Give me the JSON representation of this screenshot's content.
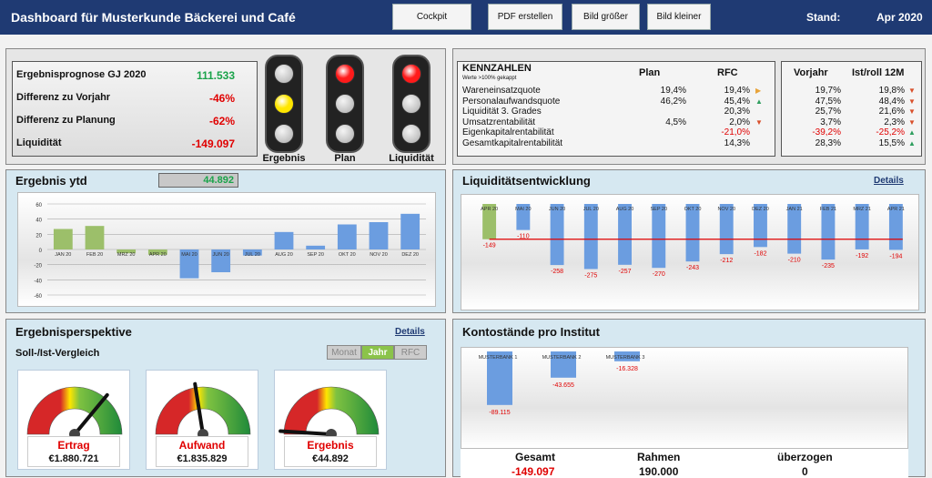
{
  "header": {
    "title": "Dashboard für Musterkunde Bäckerei und Café",
    "buttons": [
      "Cockpit",
      "PDF erstellen",
      "Bild größer",
      "Bild kleiner"
    ],
    "stand_label": "Stand:",
    "stand_value": "Apr 2020"
  },
  "overview": {
    "rows": [
      {
        "label": "Ergebnisprognose GJ 2020",
        "value": "111.533",
        "color": "#1aa34a"
      },
      {
        "label": "Differenz zu Vorjahr",
        "value": "-46%",
        "color": "#e00000"
      },
      {
        "label": "Differenz zu Planung",
        "value": "-62%",
        "color": "#e00000"
      },
      {
        "label": "Liquidität",
        "value": "-149.097",
        "color": "#e00000"
      }
    ],
    "lights": [
      {
        "label": "Ergebnis",
        "active": "yellow"
      },
      {
        "label": "Plan",
        "active": "red"
      },
      {
        "label": "Liquidität",
        "active": "red"
      }
    ]
  },
  "kennzahlen": {
    "title": "KENNZAHLEN",
    "subtitle": "Werte >100% gekappt",
    "col_plan": "Plan",
    "col_rfc": "RFC",
    "col_vorjahr": "Vorjahr",
    "col_ist": "Ist/roll 12M",
    "rows": [
      {
        "label": "Wareneinsatzquote",
        "plan": "19,4%",
        "rfc": "19,4%",
        "rfc_red": false,
        "rfc_arrow": "right",
        "vj": "19,7%",
        "vj_red": false,
        "ist": "19,8%",
        "ist_arrow": "down"
      },
      {
        "label": "Personalaufwandsquote",
        "plan": "46,2%",
        "rfc": "45,4%",
        "rfc_red": false,
        "rfc_arrow": "up",
        "vj": "47,5%",
        "vj_red": false,
        "ist": "48,4%",
        "ist_arrow": "down"
      },
      {
        "label": "Liquidität 3. Grades",
        "plan": "",
        "rfc": "20,3%",
        "rfc_red": false,
        "rfc_arrow": "",
        "vj": "25,7%",
        "vj_red": false,
        "ist": "21,6%",
        "ist_arrow": "down"
      },
      {
        "label": "Umsatzrentabilität",
        "plan": "4,5%",
        "rfc": "2,0%",
        "rfc_red": false,
        "rfc_arrow": "down",
        "vj": "3,7%",
        "vj_red": false,
        "ist": "2,3%",
        "ist_arrow": "down"
      },
      {
        "label": "Eigenkapitalrentabilität",
        "plan": "",
        "rfc": "-21,0%",
        "rfc_red": true,
        "rfc_arrow": "",
        "vj": "-39,2%",
        "vj_red": true,
        "ist": "-25,2%",
        "ist_arrow": "up"
      },
      {
        "label": "Gesamtkapitalrentabilität",
        "plan": "",
        "rfc": "14,3%",
        "rfc_red": false,
        "rfc_arrow": "",
        "vj": "28,3%",
        "vj_red": false,
        "ist": "15,5%",
        "ist_arrow": "up"
      }
    ]
  },
  "ergebnis_ytd": {
    "title": "Ergebnis ytd",
    "value": "44.892"
  },
  "liquiditaet": {
    "title": "Liquiditätsentwicklung",
    "details": "Details"
  },
  "perspektive": {
    "title": "Ergebnisperspektive",
    "details": "Details",
    "subtitle": "Soll-/Ist-Vergleich",
    "segments": [
      "Monat",
      "Jahr",
      "RFC"
    ],
    "active_segment": "Jahr",
    "gauges": [
      {
        "name": "Ertrag",
        "value": "€1.880.721",
        "needle": 0.72
      },
      {
        "name": "Aufwand",
        "value": "€1.835.829",
        "needle": 0.45
      },
      {
        "name": "Ergebnis",
        "value": "€44.892",
        "needle": 0.02
      }
    ]
  },
  "konto": {
    "title": "Kontostände pro Institut",
    "cols": [
      "Gesamt",
      "Rahmen",
      "überzogen"
    ],
    "values": [
      "-149.097",
      "190.000",
      "0"
    ]
  },
  "chart_data": [
    {
      "type": "bar",
      "categories": [
        "JAN 20",
        "FEB 20",
        "MRZ 20",
        "APR 20",
        "MAI 20",
        "JUN 20",
        "JUL 20",
        "AUG 20",
        "SEP 20",
        "OKT 20",
        "NOV 20",
        "DEZ 20"
      ],
      "values": [
        27,
        31,
        -5,
        -7,
        -38,
        -30,
        -8,
        23,
        5,
        33,
        36,
        47
      ],
      "ylim": [
        -60,
        60
      ],
      "yticks": [
        "60",
        "40",
        "20",
        "0",
        "-20",
        "-40",
        "-60"
      ],
      "colors": {
        "actual": "#9cbf6a",
        "forecast": "#6b9de0"
      },
      "actual_count": 4
    },
    {
      "type": "bar",
      "categories": [
        "APR 20",
        "MAI 20",
        "JUN 20",
        "JUL 20",
        "AUG 20",
        "SEP 20",
        "OKT 20",
        "NOV 20",
        "DEZ 20",
        "JAN 21",
        "FEB 21",
        "MRZ 21",
        "APR 21"
      ],
      "values": [
        -149,
        -110,
        -258,
        -275,
        -257,
        -270,
        -243,
        -212,
        -182,
        -210,
        -235,
        -192,
        -194
      ],
      "labels": [
        "-149",
        "-110",
        "-258",
        "-275",
        "-257",
        "-270",
        "-243",
        "-212",
        "-182",
        "-210",
        "-235",
        "-192",
        "-194"
      ],
      "ylim": [
        -300,
        0
      ],
      "reference_line": -149
    },
    {
      "type": "bar",
      "categories": [
        "MUSTERBANK 1",
        "MUSTERBANK 2",
        "MUSTERBANK 3"
      ],
      "values": [
        -89115,
        -43655,
        -16328
      ],
      "labels": [
        "-89.115",
        "-43.655",
        "-16.328"
      ],
      "ylim": [
        -100000,
        0
      ]
    }
  ]
}
